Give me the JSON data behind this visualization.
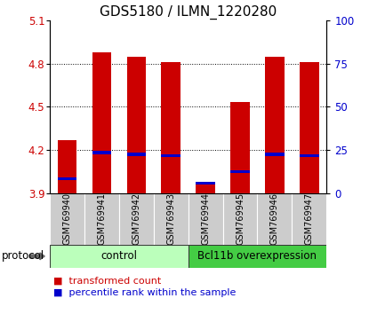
{
  "title": "GDS5180 / ILMN_1220280",
  "samples": [
    "GSM769940",
    "GSM769941",
    "GSM769942",
    "GSM769943",
    "GSM769944",
    "GSM769945",
    "GSM769946",
    "GSM769947"
  ],
  "transformed_counts": [
    4.27,
    4.88,
    4.85,
    4.81,
    3.96,
    4.53,
    4.85,
    4.81
  ],
  "percentile_ranks": [
    4.0,
    4.18,
    4.17,
    4.16,
    3.97,
    4.05,
    4.17,
    4.16
  ],
  "bar_bottom": 3.9,
  "ylim": [
    3.9,
    5.1
  ],
  "yticks_left": [
    3.9,
    4.2,
    4.5,
    4.8,
    5.1
  ],
  "yticks_right": [
    0,
    25,
    50,
    75,
    100
  ],
  "red_color": "#cc0000",
  "blue_color": "#0000cc",
  "groups": [
    {
      "label": "control",
      "count": 4,
      "color": "#bbffbb"
    },
    {
      "label": "Bcl11b overexpression",
      "count": 4,
      "color": "#44cc44"
    }
  ],
  "protocol_label": "protocol",
  "legend_red": "transformed count",
  "legend_blue": "percentile rank within the sample",
  "bar_width": 0.55,
  "xlabel_fontsize": 7,
  "title_fontsize": 11,
  "tick_fontsize": 8.5,
  "group_fontsize": 8.5,
  "legend_fontsize": 8,
  "gray_bg": "#cccccc"
}
